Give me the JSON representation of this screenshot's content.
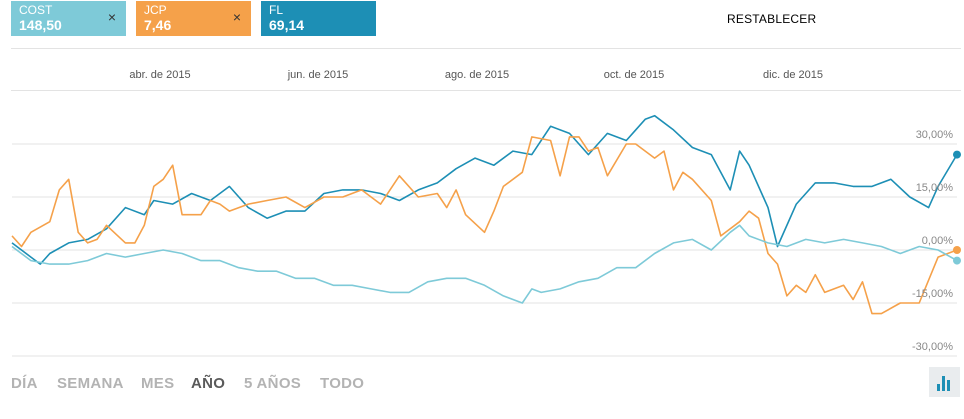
{
  "chips": [
    {
      "symbol": "COST",
      "value": "148,50",
      "color": "#7ecad8",
      "close": "×"
    },
    {
      "symbol": "JCP",
      "value": "7,46",
      "color": "#f5a14a",
      "close": "×"
    },
    {
      "symbol": "FL",
      "value": "69,14",
      "color": "#1d8fb5"
    }
  ],
  "reset_label": "RESTABLECER",
  "ranges": [
    {
      "label": "DÍA",
      "active": false
    },
    {
      "label": "SEMANA",
      "active": false
    },
    {
      "label": "MES",
      "active": false
    },
    {
      "label": "AÑO",
      "active": true
    },
    {
      "label": "5 AÑOS",
      "active": false
    },
    {
      "label": "TODO",
      "active": false
    }
  ],
  "chart_type_icon": "bar-chart-icon",
  "chart_data": {
    "type": "line",
    "x_tick_labels": [
      "abr. de 2015",
      "jun. de 2015",
      "ago. de 2015",
      "oct. de 2015",
      "dic. de 2015"
    ],
    "y_tick_labels": [
      "30,00%",
      "15,00%",
      "0,00%",
      "-15,00%",
      "-30,00%"
    ],
    "y_tick_values": [
      30,
      15,
      0,
      -15,
      -30
    ],
    "ylim": [
      -30,
      30
    ],
    "grid": true,
    "x_index_range": [
      0,
      100
    ],
    "series": [
      {
        "name": "FL",
        "color": "#1d8fb5",
        "x": [
          0,
          2,
          3,
          4,
          6,
          8,
          10,
          12,
          14,
          15,
          17,
          19,
          21,
          23,
          25,
          27,
          29,
          31,
          33,
          35,
          37,
          39,
          41,
          43,
          45,
          47,
          49,
          51,
          53,
          55,
          57,
          59,
          61,
          63,
          65,
          67,
          68,
          70,
          72,
          74,
          76,
          77,
          78,
          80,
          81,
          83,
          85,
          87,
          89,
          91,
          93,
          95,
          97,
          98,
          100
        ],
        "y": [
          2,
          -2,
          -4,
          -1,
          2,
          3,
          6,
          12,
          10,
          14,
          13,
          16,
          14,
          18,
          12,
          9,
          11,
          11,
          16,
          17,
          17,
          16,
          14,
          17,
          19,
          23,
          26,
          24,
          28,
          27,
          35,
          33,
          27,
          33,
          31,
          37,
          38,
          34,
          29,
          27,
          17,
          28,
          24,
          12,
          1,
          13,
          19,
          19,
          18,
          18,
          20,
          15,
          12,
          18,
          27
        ]
      },
      {
        "name": "JCP",
        "color": "#f5a14a",
        "x": [
          0,
          1,
          2,
          4,
          5,
          6,
          7,
          8,
          9,
          10,
          12,
          13,
          14,
          15,
          16,
          17,
          18,
          20,
          21,
          22,
          23,
          25,
          27,
          29,
          31,
          33,
          35,
          37,
          39,
          41,
          43,
          45,
          46,
          47,
          48,
          50,
          51,
          52,
          54,
          55,
          57,
          58,
          59,
          60,
          61,
          62,
          63,
          65,
          66,
          68,
          69,
          70,
          71,
          72,
          74,
          75,
          77,
          78,
          79,
          80,
          81,
          82,
          83,
          84,
          85,
          86,
          88,
          89,
          90,
          91,
          92,
          94,
          95,
          96,
          98,
          100
        ],
        "y": [
          4,
          1,
          5,
          8,
          17,
          20,
          5,
          2,
          3,
          7,
          2,
          2,
          7,
          18,
          20,
          24,
          10,
          10,
          14,
          13,
          11,
          13,
          14,
          15,
          12,
          15,
          15,
          17,
          13,
          21,
          15,
          16,
          12,
          17,
          10,
          5,
          11,
          18,
          22,
          32,
          31,
          21,
          32,
          32,
          28,
          29,
          21,
          30,
          30,
          26,
          28,
          17,
          22,
          20,
          14,
          4,
          8,
          11,
          9,
          -1,
          -4,
          -13,
          -10,
          -12,
          -7,
          -12,
          -10,
          -14,
          -9,
          -18,
          -18,
          -15,
          -15,
          -15,
          -2,
          0
        ]
      },
      {
        "name": "COST",
        "color": "#7ecad8",
        "x": [
          0,
          2,
          4,
          6,
          8,
          10,
          12,
          14,
          16,
          18,
          20,
          22,
          24,
          26,
          28,
          30,
          32,
          34,
          36,
          38,
          40,
          42,
          44,
          46,
          48,
          50,
          52,
          54,
          55,
          56,
          58,
          60,
          62,
          64,
          66,
          68,
          70,
          72,
          74,
          76,
          77,
          78,
          80,
          82,
          84,
          86,
          88,
          90,
          92,
          94,
          96,
          98,
          100
        ],
        "y": [
          1,
          -3,
          -4,
          -4,
          -3,
          -1,
          -2,
          -1,
          0,
          -1,
          -3,
          -3,
          -5,
          -6,
          -6,
          -8,
          -8,
          -10,
          -10,
          -11,
          -12,
          -12,
          -9,
          -8,
          -8,
          -10,
          -13,
          -15,
          -11,
          -12,
          -11,
          -9,
          -8,
          -5,
          -5,
          -1,
          2,
          3,
          0,
          5,
          7,
          4,
          2,
          1,
          3,
          2,
          3,
          2,
          1,
          -1,
          1,
          0,
          -3
        ]
      }
    ]
  }
}
